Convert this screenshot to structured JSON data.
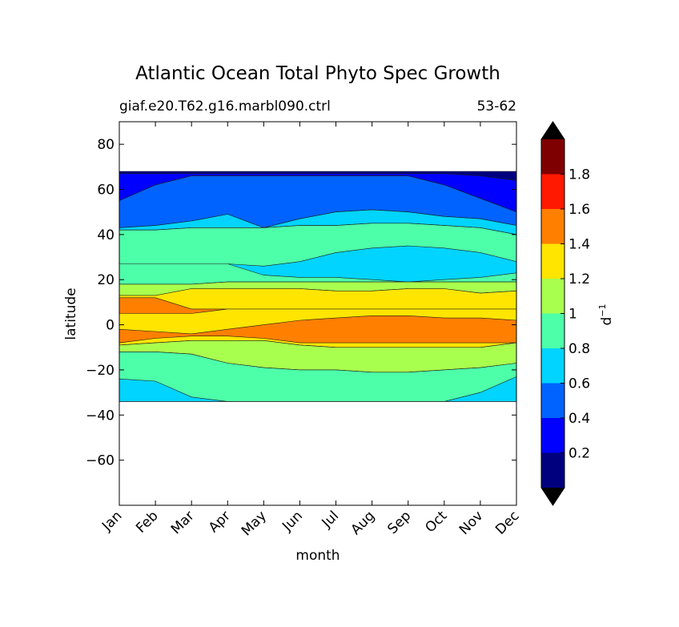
{
  "chart_data": {
    "type": "heatmap",
    "title": "Atlantic Ocean Total Phyto Spec Growth",
    "subtitle_left": "giaf.e20.T62.g16.marbl090.ctrl",
    "subtitle_right": "53-62",
    "xlabel": "month",
    "ylabel": "latitude",
    "x_categories": [
      "Jan",
      "Feb",
      "Mar",
      "Apr",
      "May",
      "Jun",
      "Jul",
      "Aug",
      "Sep",
      "Oct",
      "Nov",
      "Dec"
    ],
    "xlim": [
      0,
      11
    ],
    "ylim": [
      -80,
      90
    ],
    "y_ticks": [
      80,
      60,
      40,
      20,
      0,
      -20,
      -40,
      -60
    ],
    "y_tick_labels": [
      "80",
      "60",
      "40",
      "20",
      "0",
      "−20",
      "−40",
      "−60"
    ],
    "data_lat_range": [
      -34,
      68
    ],
    "colorbar": {
      "label": "d",
      "label_exponent": "−1",
      "levels": [
        0,
        0.2,
        0.4,
        0.6,
        0.8,
        1.0,
        1.2,
        1.4,
        1.6,
        1.8,
        2.0
      ],
      "tick_values": [
        0.2,
        0.4,
        0.6,
        0.8,
        1.0,
        1.2,
        1.4,
        1.6,
        1.8
      ],
      "tick_labels": [
        "0.2",
        "0.4",
        "0.6",
        "0.8",
        "1",
        "1.2",
        "1.4",
        "1.6",
        "1.8"
      ],
      "colors": [
        "#00007f",
        "#0000ff",
        "#0063ff",
        "#00d4ff",
        "#4dffa9",
        "#a9ff4d",
        "#ffe500",
        "#ff7f00",
        "#ff1900",
        "#7f0000"
      ],
      "extend_low_color": "#000000",
      "extend_high_color": "#000000"
    },
    "bands": [
      {
        "name": "0.0-0.2",
        "color": "#00007f",
        "lat_lo_by_month": [
          67,
          67,
          67,
          67,
          67,
          67,
          67,
          67,
          67,
          67,
          66,
          64
        ],
        "lat_hi_by_month": [
          68,
          68,
          68,
          68,
          68,
          68,
          68,
          68,
          68,
          68,
          68,
          68
        ]
      },
      {
        "name": "0.2-0.4",
        "color": "#0000ff",
        "lat_lo_by_month": [
          55,
          62,
          66,
          66,
          66,
          66,
          66,
          66,
          66,
          62,
          56,
          50
        ],
        "lat_hi_by_month": [
          67,
          67,
          67,
          67,
          67,
          67,
          67,
          67,
          67,
          67,
          66,
          64
        ]
      },
      {
        "name": "0.4-0.6",
        "color": "#0063ff",
        "lat_lo_by_month": [
          43,
          44,
          46,
          49,
          43,
          47,
          50,
          51,
          50,
          48,
          47,
          44
        ],
        "lat_hi_by_month": [
          55,
          62,
          66,
          66,
          66,
          66,
          66,
          66,
          66,
          62,
          56,
          50
        ]
      },
      {
        "name": "0.6-0.8 (north)",
        "color": "#00d4ff",
        "lat_lo_by_month": [
          42,
          42,
          43,
          43,
          43,
          44,
          44,
          45,
          45,
          44,
          43,
          40
        ],
        "lat_hi_by_month": [
          43,
          44,
          46,
          49,
          43,
          47,
          50,
          51,
          50,
          48,
          47,
          44
        ]
      },
      {
        "name": "0.8-1.0 (north)",
        "color": "#4dffa9",
        "lat_lo_by_month": [
          18,
          18,
          18,
          19,
          19,
          19,
          19,
          19,
          19,
          19,
          19,
          19
        ],
        "lat_hi_by_month": [
          42,
          42,
          43,
          43,
          43,
          44,
          44,
          45,
          45,
          44,
          43,
          40
        ]
      },
      {
        "name": "0.6-0.8 (mid-north patch)",
        "color": "#00d4ff",
        "lat_lo_by_month": [
          27,
          27,
          27,
          27,
          22,
          21,
          21,
          20,
          19,
          20,
          21,
          23
        ],
        "lat_hi_by_month": [
          27,
          27,
          27,
          27,
          26,
          28,
          32,
          34,
          35,
          34,
          32,
          28
        ]
      },
      {
        "name": "1.0-1.2 (north)",
        "color": "#a9ff4d",
        "lat_lo_by_month": [
          13,
          13,
          16,
          16,
          16,
          16,
          15,
          15,
          16,
          16,
          14,
          15
        ],
        "lat_hi_by_month": [
          18,
          18,
          18,
          19,
          19,
          19,
          19,
          19,
          19,
          19,
          19,
          19
        ]
      },
      {
        "name": "1.2-1.4",
        "color": "#ffe500",
        "lat_lo_by_month": [
          -9,
          -8,
          -7,
          -7,
          -7,
          -9,
          -10,
          -10,
          -10,
          -10,
          -10,
          -8
        ],
        "lat_hi_by_month": [
          13,
          13,
          16,
          16,
          16,
          16,
          15,
          15,
          16,
          16,
          14,
          15
        ]
      },
      {
        "name": "1.4-1.6 (north)",
        "color": "#ff7f00",
        "lat_lo_by_month": [
          5,
          5,
          5,
          7,
          7,
          7,
          7,
          7,
          7,
          7,
          7,
          7
        ],
        "lat_hi_by_month": [
          12,
          12,
          7,
          7,
          7,
          7,
          7,
          7,
          7,
          7,
          7,
          7
        ]
      },
      {
        "name": "1.4-1.6 (equatorial)",
        "color": "#ff7f00",
        "lat_lo_by_month": [
          -8,
          -6,
          -5,
          -5,
          -6,
          -8,
          -8,
          -8,
          -8,
          -8,
          -8,
          -8
        ],
        "lat_hi_by_month": [
          -2,
          -3,
          -4,
          -2,
          0,
          2,
          3,
          4,
          4,
          3,
          3,
          2
        ]
      },
      {
        "name": "1.0-1.2 (south)",
        "color": "#a9ff4d",
        "lat_lo_by_month": [
          -12,
          -12,
          -13,
          -17,
          -19,
          -20,
          -20,
          -21,
          -21,
          -20,
          -19,
          -17
        ],
        "lat_hi_by_month": [
          -9,
          -8,
          -7,
          -7,
          -7,
          -9,
          -10,
          -10,
          -10,
          -10,
          -10,
          -8
        ]
      },
      {
        "name": "0.8-1.0 (south)",
        "color": "#4dffa9",
        "lat_lo_by_month": [
          -34,
          -34,
          -34,
          -34,
          -34,
          -34,
          -34,
          -34,
          -34,
          -34,
          -34,
          -34
        ],
        "lat_hi_by_month": [
          -12,
          -12,
          -13,
          -17,
          -19,
          -20,
          -20,
          -21,
          -21,
          -20,
          -19,
          -17
        ]
      },
      {
        "name": "0.6-0.8 (south)",
        "color": "#00d4ff",
        "lat_lo_by_month": [
          -34,
          -34,
          -34,
          -34,
          -34,
          -34,
          -34,
          -34,
          -34,
          -34,
          -34,
          -34
        ],
        "lat_hi_by_month": [
          -24,
          -25,
          -32,
          -34,
          -34,
          -34,
          -34,
          -34,
          -34,
          -34,
          -30,
          -23
        ]
      }
    ]
  }
}
